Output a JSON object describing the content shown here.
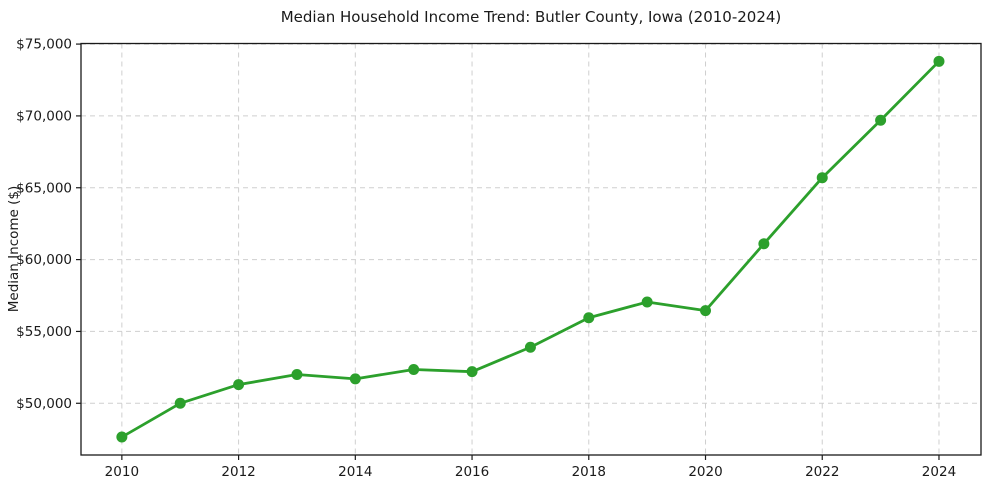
{
  "chart_data": {
    "type": "line",
    "title": "Median Household Income Trend: Butler County, Iowa (2010-2024)",
    "xlabel": "",
    "ylabel": "Median Income ($)",
    "series": [
      {
        "name": "Median Household Income",
        "x": [
          2010,
          2011,
          2012,
          2013,
          2014,
          2015,
          2016,
          2017,
          2018,
          2019,
          2020,
          2021,
          2022,
          2023,
          2024
        ],
        "values": [
          47650,
          50000,
          51300,
          52000,
          51700,
          52350,
          52200,
          53900,
          55950,
          57050,
          56450,
          61100,
          65700,
          69700,
          73800
        ]
      }
    ],
    "x_ticks": [
      2010,
      2012,
      2014,
      2016,
      2018,
      2020,
      2022,
      2024
    ],
    "y_ticks": [
      50000,
      55000,
      60000,
      65000,
      70000,
      75000
    ],
    "y_tick_labels": [
      "$50,000",
      "$55,000",
      "$60,000",
      "$65,000",
      "$70,000",
      "$75,000"
    ],
    "xlim": [
      2009.3,
      2024.72
    ],
    "ylim": [
      46400,
      75040
    ],
    "grid": true,
    "legend": "none",
    "colors": {
      "line": "#2ca02c",
      "marker": "#2ca02c",
      "grid": "#cfcfcf",
      "spine": "#1a1a1a",
      "text": "#1a1a1a",
      "background": "#ffffff"
    },
    "marker_radius": 5.5
  }
}
